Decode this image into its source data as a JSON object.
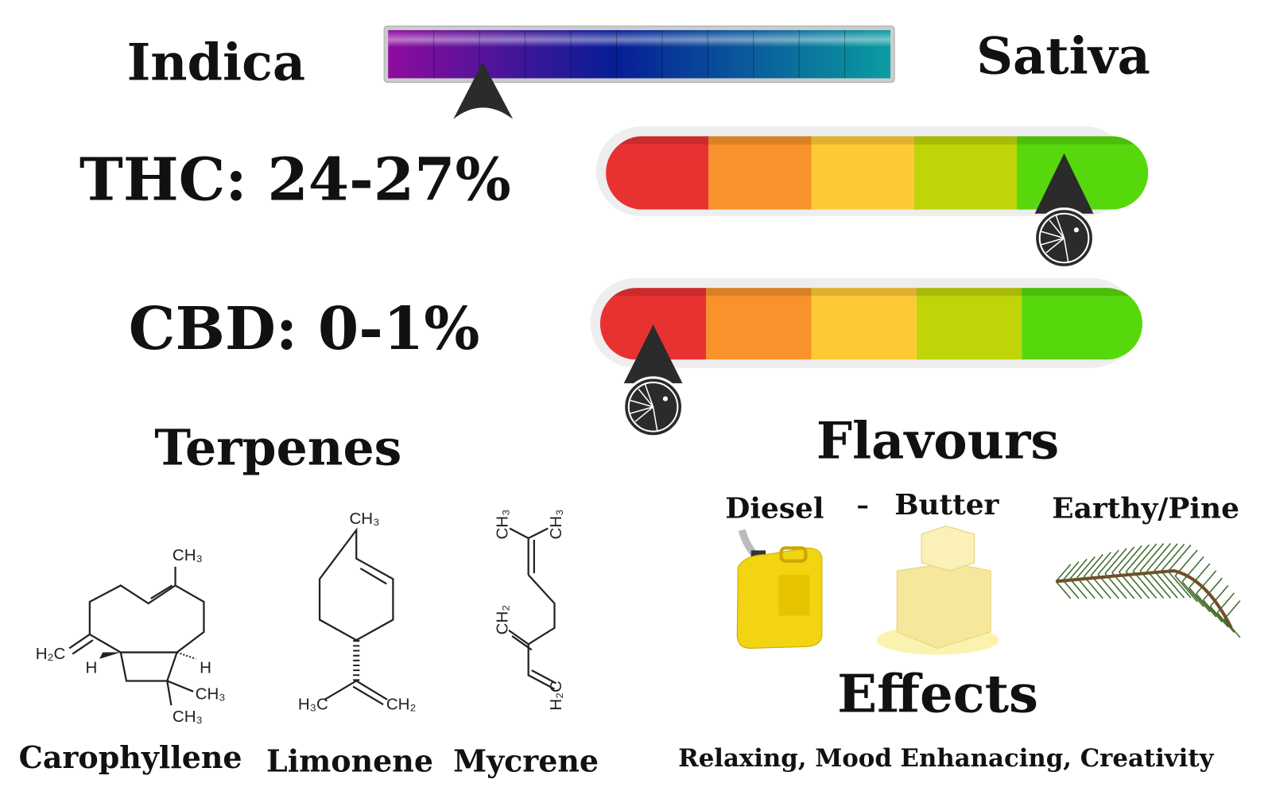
{
  "strain_type": {
    "left": "Indica",
    "right": "Sativa"
  },
  "thc": "THC: 24-27%",
  "cbd": "CBD: 0-1%",
  "terpenes": {
    "title": "Terpenes",
    "items": [
      {
        "name": "Carophyllene",
        "labels": [
          "CH₃",
          "H₂C",
          "H",
          "H",
          "CH₃",
          "CH₃"
        ]
      },
      {
        "name": "Limonene",
        "labels": [
          "CH₃",
          "H₃C",
          "CH₂"
        ]
      },
      {
        "name": "Mycrene",
        "labels": [
          "CH₃",
          "CH₃",
          "CH₂",
          "H₂C"
        ]
      }
    ]
  },
  "flavours": {
    "title": "Flavours",
    "items": [
      "Diesel",
      "Butter",
      "Earthy/Pine"
    ],
    "separator": "–"
  },
  "effects": {
    "title": "Effects",
    "text": "Relaxing, Mood Enhanacing, Creativity"
  }
}
